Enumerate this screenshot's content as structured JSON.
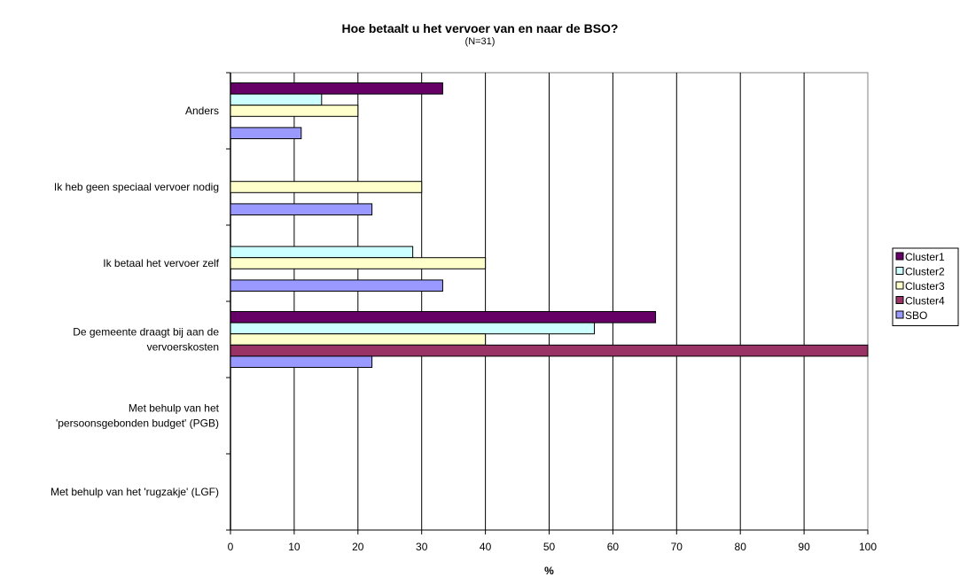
{
  "chart_data": {
    "type": "bar",
    "orientation": "horizontal",
    "title": "Hoe betaalt u het vervoer van en naar de BSO?",
    "subtitle": "(N=31)",
    "xlabel": "%",
    "ylabel": "",
    "xlim": [
      0,
      100
    ],
    "x_ticks": [
      "0",
      "10",
      "20",
      "30",
      "40",
      "50",
      "60",
      "70",
      "80",
      "90",
      "100"
    ],
    "grid": "vertical",
    "legend_position": "right",
    "categories": [
      "Anders",
      "Ik heb geen speciaal vervoer nodig",
      "Ik betaal het vervoer zelf",
      "De gemeente draagt bij aan de vervoerskosten",
      "Met behulp van het 'persoonsgebonden budget' (PGB)",
      "Met behulp van het 'rugzakje' (LGF)"
    ],
    "category_label_lines": [
      [
        "Anders"
      ],
      [
        "Ik heb geen speciaal vervoer nodig"
      ],
      [
        "Ik betaal het vervoer zelf"
      ],
      [
        "De gemeente draagt bij aan de",
        "vervoerskosten"
      ],
      [
        "Met behulp van het",
        "'persoonsgebonden budget' (PGB)"
      ],
      [
        "Met behulp van het 'rugzakje' (LGF)"
      ]
    ],
    "series": [
      {
        "name": "Cluster1",
        "color": "#660066",
        "values": [
          33.3,
          0,
          0,
          66.7,
          0,
          0
        ]
      },
      {
        "name": "Cluster2",
        "color": "#CCFFFF",
        "values": [
          14.3,
          0,
          28.6,
          57.1,
          0,
          0
        ]
      },
      {
        "name": "Cluster3",
        "color": "#FFFFCC",
        "values": [
          20,
          30,
          40,
          40,
          0,
          0
        ]
      },
      {
        "name": "Cluster4",
        "color": "#993366",
        "values": [
          0,
          0,
          0,
          100,
          0,
          0
        ]
      },
      {
        "name": "SBO",
        "color": "#9999FF",
        "values": [
          11.1,
          22.2,
          33.3,
          22.2,
          0,
          0
        ]
      }
    ]
  }
}
